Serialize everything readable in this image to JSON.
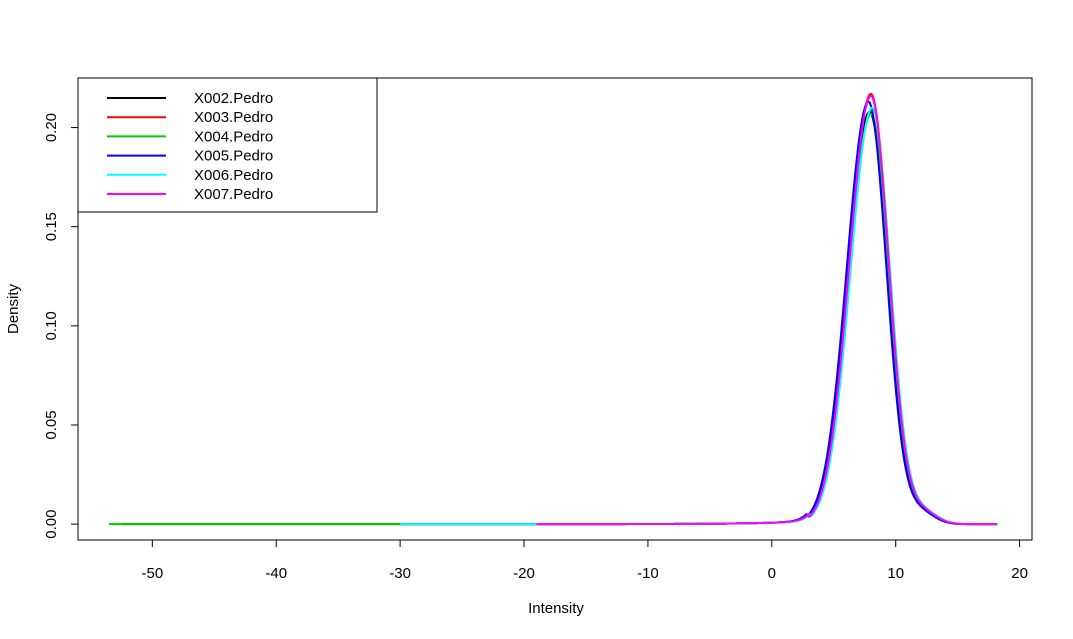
{
  "chart_data": {
    "type": "line",
    "title": "",
    "xlabel": "Intensity",
    "ylabel": "Density",
    "xlim": [
      -56,
      21
    ],
    "ylim": [
      -0.008,
      0.225
    ],
    "x_ticks": [
      -50,
      -40,
      -30,
      -20,
      -10,
      0,
      10,
      20
    ],
    "x_tick_labels": [
      "-50",
      "-40",
      "-30",
      "-20",
      "-10",
      "0",
      "10",
      "20"
    ],
    "y_ticks": [
      0.0,
      0.05,
      0.1,
      0.15,
      0.2
    ],
    "y_tick_labels": [
      "0.00",
      "0.05",
      "0.10",
      "0.15",
      "0.20"
    ],
    "grid": false,
    "legend_position": "top-left",
    "series": [
      {
        "name": "X002.Pedro",
        "color": "#000000",
        "x_range": [
          -52.5,
          18.2
        ],
        "peak_x": 7.9,
        "peak_y": 0.208,
        "shift": -0.25
      },
      {
        "name": "X003.Pedro",
        "color": "#ff0000",
        "x_range": [
          -19,
          18.2
        ],
        "peak_x": 8.0,
        "peak_y": 0.217,
        "shift": 0.15
      },
      {
        "name": "X004.Pedro",
        "color": "#00cd00",
        "x_range": [
          -53.5,
          18.2
        ],
        "peak_x": 8.0,
        "peak_y": 0.207,
        "shift": 0.05
      },
      {
        "name": "X005.Pedro",
        "color": "#0000ff",
        "x_range": [
          -30,
          18.2
        ],
        "peak_x": 7.8,
        "peak_y": 0.213,
        "shift": 0.0
      },
      {
        "name": "X006.Pedro",
        "color": "#00ffff",
        "x_range": [
          -30,
          18.2
        ],
        "peak_x": 8.1,
        "peak_y": 0.21,
        "shift": 0.2
      },
      {
        "name": "X007.Pedro",
        "color": "#ff00ff",
        "x_range": [
          -19,
          18.2
        ],
        "peak_x": 8.0,
        "peak_y": 0.216,
        "shift": 0.2
      }
    ]
  }
}
